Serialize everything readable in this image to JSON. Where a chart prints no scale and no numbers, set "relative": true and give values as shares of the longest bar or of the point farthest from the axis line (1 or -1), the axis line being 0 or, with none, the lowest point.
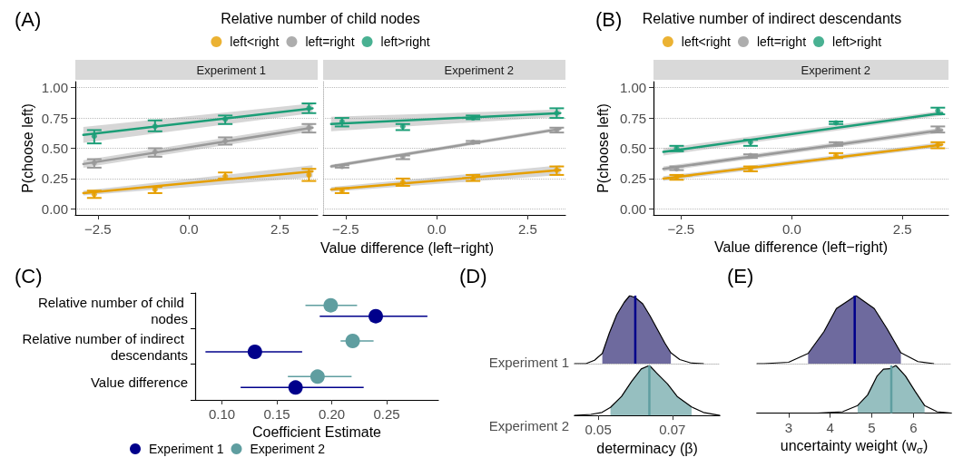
{
  "chart_data": [
    {
      "type": "line",
      "annotations": [
        "(A)"
      ],
      "legend_title": "Relative number of child nodes",
      "legend": "top",
      "subtitle": "Experiment 1",
      "ylabel": "P(choose left)",
      "xlabel": "Value difference (left−right)",
      "grid": "y",
      "xlim": [
        -3.12,
        3.54
      ],
      "xticks": [
        {
          "value": -2.5,
          "label": "−2.5"
        },
        {
          "value": 0,
          "label": "0.0"
        },
        {
          "value": 2.5,
          "label": "2.5"
        }
      ],
      "ylim": [
        -0.05,
        1.05
      ],
      "yticks": [
        {
          "value": 0,
          "label": "0.00"
        },
        {
          "value": 0.25,
          "label": "0.25"
        },
        {
          "value": 0.5,
          "label": "0.50"
        },
        {
          "value": 0.75,
          "label": "0.75"
        },
        {
          "value": 1,
          "label": "1.00"
        }
      ],
      "series": [
        {
          "type": "line",
          "color": "#e69f00",
          "x": [
            -2.9,
            3.4
          ],
          "values": [
            0.13,
            0.31
          ],
          "lower": [
            0.11,
            0.26
          ],
          "upper": [
            0.15,
            0.36
          ]
        },
        {
          "type": "line",
          "color": "#999999",
          "x": [
            -2.9,
            3.4
          ],
          "values": [
            0.37,
            0.67
          ],
          "lower": [
            0.34,
            0.64
          ],
          "upper": [
            0.4,
            0.7
          ]
        },
        {
          "type": "line",
          "color": "#1b9e77",
          "x": [
            -2.9,
            3.4
          ],
          "values": [
            0.61,
            0.83
          ],
          "lower": [
            0.545,
            0.79
          ],
          "upper": [
            0.675,
            0.87
          ]
        },
        {
          "type": "scatter",
          "name": "left<right",
          "color": "#e69f00",
          "x": [
            -2.6,
            -0.93,
            1.0,
            3.3
          ],
          "values": [
            0.12,
            0.16,
            0.27,
            0.28
          ],
          "errors": [
            [
              0.09,
              0.15
            ],
            [
              0.13,
              0.18
            ],
            [
              0.25,
              0.3
            ],
            [
              0.23,
              0.33
            ]
          ]
        },
        {
          "type": "scatter",
          "name": "left=right",
          "color": "#999999",
          "x": [
            -2.6,
            -0.93,
            1.0,
            3.3
          ],
          "values": [
            0.38,
            0.47,
            0.56,
            0.67
          ],
          "errors": [
            [
              0.34,
              0.41
            ],
            [
              0.43,
              0.5
            ],
            [
              0.53,
              0.59
            ],
            [
              0.63,
              0.7
            ]
          ]
        },
        {
          "type": "scatter",
          "name": "left>right",
          "color": "#1b9e77",
          "x": [
            -2.6,
            -0.93,
            1.0,
            3.3
          ],
          "values": [
            0.6,
            0.68,
            0.74,
            0.83
          ],
          "errors": [
            [
              0.54,
              0.65
            ],
            [
              0.64,
              0.73
            ],
            [
              0.7,
              0.77
            ],
            [
              0.79,
              0.87
            ]
          ]
        }
      ]
    },
    {
      "type": "line",
      "subtitle": "Experiment 2",
      "grid": "y",
      "tick_labels": "x",
      "xlim": [
        -3.12,
        3.54
      ],
      "xticks": [
        {
          "value": -2.5,
          "label": "−2.5"
        },
        {
          "value": 0,
          "label": "0.0"
        },
        {
          "value": 2.5,
          "label": "2.5"
        }
      ],
      "ylim": [
        -0.05,
        1.05
      ],
      "yticks": [
        {
          "value": 0,
          "label": null
        },
        {
          "value": 0.25,
          "label": null
        },
        {
          "value": 0.5,
          "label": null
        },
        {
          "value": 0.75,
          "label": null
        },
        {
          "value": 1,
          "label": null
        }
      ],
      "series": [
        {
          "type": "line",
          "color": "#e69f00",
          "x": [
            -2.9,
            3.4
          ],
          "values": [
            0.16,
            0.32
          ],
          "lower": [
            0.14,
            0.28
          ],
          "upper": [
            0.18,
            0.36
          ]
        },
        {
          "type": "line",
          "color": "#999999",
          "x": [
            -2.9,
            3.4
          ],
          "values": [
            0.35,
            0.66
          ],
          "lower": [
            0.335,
            0.645
          ],
          "upper": [
            0.365,
            0.675
          ]
        },
        {
          "type": "line",
          "color": "#1b9e77",
          "x": [
            -2.9,
            3.4
          ],
          "values": [
            0.7,
            0.79
          ],
          "lower": [
            0.64,
            0.76
          ],
          "upper": [
            0.76,
            0.82
          ]
        },
        {
          "type": "scatter",
          "color": "#e69f00",
          "x": [
            -2.6,
            -0.93,
            1.0,
            3.3
          ],
          "values": [
            0.15,
            0.22,
            0.25,
            0.32
          ],
          "errors": [
            [
              0.13,
              0.17
            ],
            [
              0.19,
              0.25
            ],
            [
              0.23,
              0.28
            ],
            [
              0.28,
              0.35
            ]
          ]
        },
        {
          "type": "scatter",
          "color": "#999999",
          "x": [
            -2.6,
            -0.93,
            1.0,
            3.3
          ],
          "values": [
            0.35,
            0.43,
            0.55,
            0.65
          ],
          "errors": [
            [
              0.34,
              0.36
            ],
            [
              0.41,
              0.44
            ],
            [
              0.54,
              0.56
            ],
            [
              0.63,
              0.67
            ]
          ]
        },
        {
          "type": "scatter",
          "color": "#1b9e77",
          "x": [
            -2.6,
            -0.93,
            1.0,
            3.3
          ],
          "values": [
            0.72,
            0.68,
            0.75,
            0.79
          ],
          "errors": [
            [
              0.68,
              0.75
            ],
            [
              0.65,
              0.7
            ],
            [
              0.74,
              0.77
            ],
            [
              0.75,
              0.83
            ]
          ]
        }
      ]
    },
    {
      "type": "line",
      "annotations": [
        "(B)"
      ],
      "legend_title": "Relative number of indirect descendants",
      "legend": "top",
      "subtitle": "Experiment 2",
      "ylabel": "P(choose left)",
      "xlabel": "Value difference (left−right)",
      "grid": "y",
      "xlim": [
        -3.12,
        3.54
      ],
      "xticks": [
        {
          "value": -2.5,
          "label": "−2.5"
        },
        {
          "value": 0,
          "label": "0.0"
        },
        {
          "value": 2.5,
          "label": "2.5"
        }
      ],
      "ylim": [
        -0.05,
        1.05
      ],
      "yticks": [
        {
          "value": 0,
          "label": "0.00"
        },
        {
          "value": 0.25,
          "label": "0.25"
        },
        {
          "value": 0.5,
          "label": "0.50"
        },
        {
          "value": 0.75,
          "label": "0.75"
        },
        {
          "value": 1,
          "label": "1.00"
        }
      ],
      "series": [
        {
          "type": "line",
          "color": "#e69f00",
          "x": [
            -2.9,
            3.4
          ],
          "values": [
            0.25,
            0.53
          ],
          "lower": [
            0.23,
            0.51
          ],
          "upper": [
            0.27,
            0.55
          ]
        },
        {
          "type": "line",
          "color": "#999999",
          "x": [
            -2.9,
            3.4
          ],
          "values": [
            0.33,
            0.65
          ],
          "lower": [
            0.31,
            0.63
          ],
          "upper": [
            0.35,
            0.67
          ]
        },
        {
          "type": "line",
          "color": "#1b9e77",
          "x": [
            -2.9,
            3.4
          ],
          "values": [
            0.47,
            0.79
          ],
          "lower": [
            0.44,
            0.77
          ],
          "upper": [
            0.5,
            0.81
          ]
        },
        {
          "type": "scatter",
          "name": "left<right",
          "color": "#e69f00",
          "x": [
            -2.6,
            -0.93,
            1.0,
            3.3
          ],
          "values": [
            0.26,
            0.33,
            0.44,
            0.53
          ],
          "errors": [
            [
              0.24,
              0.28
            ],
            [
              0.31,
              0.35
            ],
            [
              0.42,
              0.46
            ],
            [
              0.5,
              0.55
            ]
          ]
        },
        {
          "type": "scatter",
          "name": "left=right",
          "color": "#999999",
          "x": [
            -2.6,
            -0.93,
            1.0,
            3.3
          ],
          "values": [
            0.33,
            0.44,
            0.535,
            0.66
          ],
          "errors": [
            [
              0.32,
              0.35
            ],
            [
              0.42,
              0.45
            ],
            [
              0.52,
              0.55
            ],
            [
              0.63,
              0.68
            ]
          ]
        },
        {
          "type": "scatter",
          "name": "left>right",
          "color": "#1b9e77",
          "x": [
            -2.6,
            -0.93,
            1.0,
            3.3
          ],
          "values": [
            0.5,
            0.55,
            0.71,
            0.81
          ],
          "errors": [
            [
              0.475,
              0.52
            ],
            [
              0.52,
              0.57
            ],
            [
              0.7,
              0.72
            ],
            [
              0.78,
              0.835
            ]
          ]
        }
      ]
    },
    {
      "type": "scatter",
      "orientation": "horizontal",
      "annotations": [
        "(C)"
      ],
      "categories": [
        "Relative number of child nodes",
        "Relative number of indirect descendants",
        "Value difference"
      ],
      "xlabel": "Coefficient Estimate",
      "xlim": [
        0.0756,
        0.297
      ],
      "xticks": [
        {
          "value": 0.1,
          "label": "0.10"
        },
        {
          "value": 0.15,
          "label": "0.15"
        },
        {
          "value": 0.2,
          "label": "0.20"
        },
        {
          "value": 0.25,
          "label": "0.25"
        }
      ],
      "legend": "bottom",
      "series": [
        {
          "name": "Experiment 1",
          "color": "#00008b",
          "values": [
            0.24,
            0.13,
            0.167
          ],
          "errors": [
            [
              0.189,
              0.287
            ],
            [
              0.085,
              0.173
            ],
            [
              0.117,
              0.229
            ]
          ]
        },
        {
          "name": "Experiment 2",
          "color": "#5f9ea0",
          "values": [
            0.199,
            0.219,
            0.187
          ],
          "errors": [
            [
              0.176,
              0.223
            ],
            [
              0.208,
              0.238
            ],
            [
              0.16,
              0.218
            ]
          ]
        }
      ]
    },
    {
      "type": "area",
      "relative": true,
      "annotations": [
        "(D)"
      ],
      "tick_labels": false,
      "xlim": [
        0.0436,
        0.0828
      ],
      "ref_lines": [
        {
          "axis": "x",
          "value": 0.06,
          "color": "#00008b"
        }
      ],
      "series": [
        {
          "name": "Experiment 1",
          "color": "#6e6a9e",
          "x": [
            0.0511,
            0.053,
            0.055,
            0.057,
            0.0585,
            0.06,
            0.062,
            0.064,
            0.066,
            0.068,
            0.0696
          ],
          "values": [
            0.15,
            0.45,
            0.72,
            0.9,
            1,
            0.97,
            0.88,
            0.7,
            0.5,
            0.3,
            0.16
          ]
        },
        {
          "type": "line",
          "color": "#000000",
          "x": [
            0.0436,
            0.0467,
            0.049,
            0.0511,
            0.053,
            0.055,
            0.057,
            0.0585,
            0.06,
            0.062,
            0.064,
            0.066,
            0.068,
            0.0696,
            0.072,
            0.075,
            0.0784
          ],
          "values": [
            0,
            0,
            0.05,
            0.15,
            0.45,
            0.72,
            0.9,
            1,
            0.97,
            0.88,
            0.7,
            0.5,
            0.3,
            0.16,
            0.06,
            0.01,
            0
          ]
        }
      ]
    },
    {
      "type": "area",
      "relative": true,
      "tick_labels": "x",
      "xlabel": "determinacy (β)",
      "xlim": [
        0.0436,
        0.0828
      ],
      "xticks": [
        {
          "value": 0.05,
          "label": "0.05"
        },
        {
          "value": 0.07,
          "label": "0.07"
        }
      ],
      "ref_lines": [
        {
          "axis": "x",
          "value": 0.0638,
          "color": "#5f9ea0"
        }
      ],
      "series": [
        {
          "name": "Experiment 2",
          "color": "#96bfc0",
          "x": [
            0.0533,
            0.0563,
            0.059,
            0.0616,
            0.0638,
            0.066,
            0.0687,
            0.0713,
            0.0752
          ],
          "values": [
            0.16,
            0.38,
            0.68,
            0.93,
            1,
            0.83,
            0.63,
            0.38,
            0.17
          ]
        },
        {
          "type": "line",
          "color": "#000000",
          "x": [
            0.0436,
            0.048,
            0.051,
            0.0533,
            0.0563,
            0.059,
            0.0616,
            0.0638,
            0.066,
            0.0687,
            0.0713,
            0.0752,
            0.0784,
            0.0828
          ],
          "values": [
            0,
            0.02,
            0.06,
            0.16,
            0.38,
            0.68,
            0.93,
            1,
            0.83,
            0.63,
            0.38,
            0.17,
            0.06,
            0
          ]
        }
      ]
    },
    {
      "type": "area",
      "relative": true,
      "annotations": [
        "(E)"
      ],
      "tick_labels": false,
      "xlim": [
        2.24,
        6.91
      ],
      "ref_lines": [
        {
          "axis": "x",
          "value": 4.59,
          "color": "#00008b"
        }
      ],
      "series": [
        {
          "color": "#6e6a9e",
          "x": [
            3.47,
            3.85,
            4.15,
            4.62,
            5.06,
            5.36,
            5.7
          ],
          "values": [
            0.15,
            0.47,
            0.81,
            1,
            0.81,
            0.52,
            0.16
          ]
        },
        {
          "type": "line",
          "color": "#000000",
          "x": [
            2.24,
            2.41,
            3.0,
            3.47,
            3.85,
            4.15,
            4.62,
            5.06,
            5.36,
            5.7,
            6.11,
            6.49
          ],
          "values": [
            0,
            0,
            0.02,
            0.15,
            0.47,
            0.81,
            1,
            0.81,
            0.52,
            0.16,
            0.03,
            0
          ]
        }
      ]
    },
    {
      "type": "area",
      "relative": true,
      "tick_labels": "x",
      "xlabel": "uncertainty weight (w$_{σ}$)",
      "xlim": [
        2.24,
        6.91
      ],
      "xticks": [
        3,
        4,
        5,
        6
      ],
      "ref_lines": [
        {
          "axis": "x",
          "value": 5.47,
          "color": "#5f9ea0"
        }
      ],
      "series": [
        {
          "color": "#96bfc0",
          "x": [
            4.66,
            4.9,
            5.13,
            5.28,
            5.43,
            5.58,
            5.81,
            6.04,
            6.27
          ],
          "values": [
            0.16,
            0.38,
            0.78,
            0.92,
            0.93,
            1,
            0.78,
            0.46,
            0.16
          ]
        },
        {
          "type": "line",
          "color": "#000000",
          "x": [
            2.24,
            3.7,
            4.3,
            4.66,
            4.9,
            5.13,
            5.28,
            5.43,
            5.58,
            5.81,
            6.04,
            6.27,
            6.57,
            6.91
          ],
          "values": [
            0,
            0,
            0.03,
            0.16,
            0.38,
            0.78,
            0.92,
            0.93,
            1,
            0.78,
            0.46,
            0.16,
            0.03,
            0
          ]
        }
      ]
    }
  ]
}
